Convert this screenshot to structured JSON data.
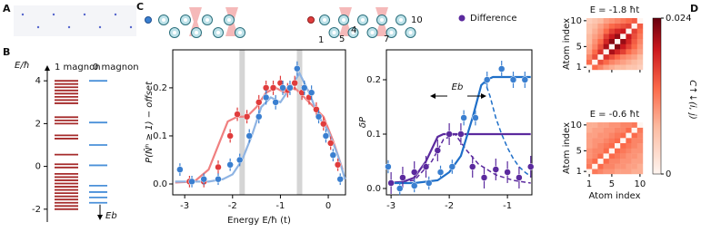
{
  "panel_labels": [
    "A",
    "B",
    "C",
    "D"
  ],
  "chain_labels": [
    "1",
    "4",
    "5",
    "7",
    "10"
  ],
  "colorbar": {
    "label": "C↑↓(i, j)",
    "lim": [
      0,
      0.024
    ],
    "ticks": [
      0,
      0.024
    ]
  },
  "chart_data": [
    {
      "type": "levels",
      "ylabel": "E/ħ",
      "ylim": [
        -2.6,
        4.6
      ],
      "yticks": [
        -2,
        0,
        2,
        4
      ],
      "annotation": "Eb",
      "series": [
        {
          "name": "1 magnon",
          "color": "#a52a2a",
          "values": [
            4.0,
            3.85,
            3.7,
            3.55,
            3.4,
            3.25,
            3.1,
            2.95,
            2.3,
            2.15,
            2.0,
            1.45,
            1.3,
            0.55,
            0.1,
            -0.05,
            -0.35,
            -0.5,
            -0.65,
            -0.8,
            -0.95,
            -1.1,
            -1.25,
            -1.4,
            -1.55,
            -1.7,
            -1.85,
            -2.0
          ]
        },
        {
          "name": "0 magnon",
          "color": "#4a90d9",
          "values": [
            4.0,
            2.05,
            1.0,
            0.05,
            -0.9,
            -1.2,
            -1.45,
            -1.7
          ]
        }
      ]
    },
    {
      "type": "scatter",
      "xlabel": "Energy E/ħ (t)",
      "ylabel": "P(N̂ʰ ≥ 1) − offset",
      "xlim": [
        -3.25,
        0.36
      ],
      "ylim": [
        -0.0226,
        0.279
      ],
      "xticks": [
        -3,
        -2,
        -1,
        0
      ],
      "yticks": [
        {
          "value": 0,
          "label": "0.0"
        },
        0.1,
        0.2
      ],
      "highlight_x": [
        -1.8,
        -0.6
      ],
      "series": [
        {
          "color": "#e03c3c",
          "x": [
            -2.9,
            -2.6,
            -2.3,
            -2.05,
            -1.9,
            -1.7,
            -1.45,
            -1.3,
            -1.15,
            -1.0,
            -0.85,
            -0.7,
            -0.55,
            -0.4,
            -0.25,
            -0.1,
            0.05,
            0.2
          ],
          "values": [
            0.005,
            0.005,
            0.035,
            0.1,
            0.145,
            0.14,
            0.17,
            0.2,
            0.2,
            0.21,
            0.195,
            0.21,
            0.19,
            0.18,
            0.155,
            0.125,
            0.085,
            0.04
          ],
          "errors": [
            0.012,
            0.012,
            0.014,
            0.014,
            0.014,
            0.014,
            0.015,
            0.015,
            0.015,
            0.015,
            0.015,
            0.015,
            0.015,
            0.015,
            0.015,
            0.014,
            0.014,
            0.013
          ]
        },
        {
          "color": "#3a7fd0",
          "x": [
            -3.1,
            -2.85,
            -2.6,
            -2.3,
            -2.05,
            -1.85,
            -1.65,
            -1.45,
            -1.3,
            -1.1,
            -0.95,
            -0.8,
            -0.65,
            -0.5,
            -0.35,
            -0.2,
            -0.05,
            0.1,
            0.25
          ],
          "values": [
            0.03,
            0.005,
            0.01,
            0.01,
            0.04,
            0.05,
            0.1,
            0.14,
            0.18,
            0.17,
            0.2,
            0.2,
            0.24,
            0.2,
            0.19,
            0.14,
            0.1,
            0.06,
            0.01
          ],
          "errors": [
            0.013,
            0.012,
            0.012,
            0.012,
            0.013,
            0.013,
            0.014,
            0.014,
            0.015,
            0.015,
            0.015,
            0.015,
            0.015,
            0.015,
            0.015,
            0.014,
            0.014,
            0.013,
            0.012
          ]
        }
      ],
      "fits": [
        {
          "color": "#f08080",
          "dashed": false,
          "x": [
            -3.2,
            -2.8,
            -2.5,
            -2.3,
            -2.1,
            -1.9,
            -1.7,
            -1.5,
            -1.3,
            -1.1,
            -0.9,
            -0.7,
            -0.5,
            -0.3,
            -0.1,
            0.1,
            0.3
          ],
          "values": [
            0.003,
            0.005,
            0.03,
            0.08,
            0.13,
            0.14,
            0.14,
            0.16,
            0.19,
            0.2,
            0.19,
            0.2,
            0.18,
            0.16,
            0.14,
            0.09,
            0.03
          ]
        },
        {
          "color": "#8fb4e3",
          "dashed": false,
          "x": [
            -3.2,
            -2.8,
            -2.5,
            -2.2,
            -2.0,
            -1.8,
            -1.6,
            -1.4,
            -1.2,
            -1.0,
            -0.8,
            -0.6,
            -0.4,
            -0.2,
            0,
            0.2,
            0.35
          ],
          "values": [
            0.005,
            0.005,
            0.005,
            0.01,
            0.02,
            0.05,
            0.1,
            0.16,
            0.18,
            0.17,
            0.2,
            0.23,
            0.19,
            0.14,
            0.11,
            0.06,
            0.01
          ]
        }
      ]
    },
    {
      "type": "scatter",
      "ylabel": "δP",
      "annotation": "Eb",
      "legend": "top",
      "xlim": [
        -3.08,
        -0.58
      ],
      "ylim": [
        -0.0117,
        0.255
      ],
      "xticks": [
        -3,
        -2,
        -1
      ],
      "yticks": [
        {
          "value": 0,
          "label": "0.0"
        },
        0.1,
        0.2
      ],
      "series": [
        {
          "name": "Difference",
          "color": "#5b2a9e",
          "x": [
            -3.0,
            -2.8,
            -2.6,
            -2.4,
            -2.2,
            -2.0,
            -1.8,
            -1.6,
            -1.4,
            -1.2,
            -1.0,
            -0.8,
            -0.6
          ],
          "values": [
            0.01,
            0.02,
            0.03,
            0.04,
            0.07,
            0.1,
            0.1,
            0.04,
            0.02,
            0.035,
            0.03,
            0.02,
            0.04
          ],
          "errors": [
            0.02,
            0.02,
            0.02,
            0.02,
            0.02,
            0.02,
            0.02,
            0.02,
            0.02,
            0.02,
            0.02,
            0.02,
            0.02
          ]
        },
        {
          "color": "#3a7fd0",
          "x": [
            -3.05,
            -2.85,
            -2.6,
            -2.35,
            -2.15,
            -1.95,
            -1.75,
            -1.55,
            -1.35,
            -1.1,
            -0.9,
            -0.7
          ],
          "values": [
            0.04,
            0.0,
            0.005,
            0.01,
            0.03,
            0.04,
            0.13,
            0.13,
            0.2,
            0.22,
            0.2,
            0.2
          ],
          "errors": [
            0.012,
            0.012,
            0.012,
            0.012,
            0.012,
            0.013,
            0.014,
            0.014,
            0.015,
            0.015,
            0.015,
            0.015
          ]
        }
      ],
      "fits": [
        {
          "color": "#5b2a9e",
          "dashed": false,
          "x": [
            -3.05,
            -2.8,
            -2.6,
            -2.4,
            -2.2,
            -2.1,
            -0.6
          ],
          "values": [
            0.01,
            0.012,
            0.02,
            0.05,
            0.095,
            0.1,
            0.1
          ]
        },
        {
          "color": "#5b2a9e",
          "dashed": true,
          "x": [
            -3.05,
            -2.6,
            -2.3,
            -2.1,
            -1.9,
            -1.7,
            -1.5,
            -1.2,
            -0.9,
            -0.6
          ],
          "values": [
            0.01,
            0.015,
            0.05,
            0.09,
            0.1,
            0.07,
            0.045,
            0.025,
            0.015,
            0.01
          ]
        },
        {
          "color": "#1f6fc8",
          "dashed": false,
          "x": [
            -3.05,
            -2.6,
            -2.2,
            -2.0,
            -1.8,
            -1.6,
            -1.45,
            -1.35,
            -1.25,
            -0.6
          ],
          "values": [
            0.01,
            0.01,
            0.015,
            0.03,
            0.06,
            0.13,
            0.19,
            0.2,
            0.205,
            0.205
          ]
        },
        {
          "color": "#1f6fc8",
          "dashed": true,
          "x": [
            -1.4,
            -1.3,
            -1.2,
            -1.1,
            -1.0,
            -0.9,
            -0.8,
            -0.7,
            -0.6
          ],
          "values": [
            0.2,
            0.17,
            0.13,
            0.1,
            0.075,
            0.055,
            0.04,
            0.03,
            0.022
          ]
        }
      ]
    },
    {
      "type": "heatmap",
      "title": "E = -1.8 ħt",
      "ylabel": "Atom index",
      "xticks": [
        1,
        5,
        10
      ],
      "yticks": [
        1,
        5,
        10
      ],
      "values": [
        [
          0,
          0.012,
          0.01,
          0.008,
          0.007,
          0.006,
          0.006,
          0.005,
          0.005,
          0.004
        ],
        [
          0.012,
          0,
          0.014,
          0.012,
          0.01,
          0.009,
          0.008,
          0.007,
          0.006,
          0.005
        ],
        [
          0.01,
          0.014,
          0,
          0.016,
          0.014,
          0.012,
          0.01,
          0.009,
          0.008,
          0.006
        ],
        [
          0.008,
          0.012,
          0.016,
          0,
          0.02,
          0.017,
          0.015,
          0.012,
          0.01,
          0.008
        ],
        [
          0.007,
          0.01,
          0.014,
          0.02,
          0,
          0.022,
          0.018,
          0.015,
          0.012,
          0.009
        ],
        [
          0.006,
          0.009,
          0.012,
          0.017,
          0.022,
          0,
          0.021,
          0.017,
          0.013,
          0.01
        ],
        [
          0.006,
          0.008,
          0.01,
          0.015,
          0.018,
          0.021,
          0,
          0.018,
          0.014,
          0.011
        ],
        [
          0.005,
          0.007,
          0.009,
          0.012,
          0.015,
          0.017,
          0.018,
          0,
          0.015,
          0.012
        ],
        [
          0.005,
          0.006,
          0.008,
          0.01,
          0.012,
          0.013,
          0.014,
          0.015,
          0,
          0.013
        ],
        [
          0.004,
          0.005,
          0.006,
          0.008,
          0.009,
          0.01,
          0.011,
          0.012,
          0.013,
          0
        ]
      ]
    },
    {
      "type": "heatmap",
      "title": "E = -0.6 ħt",
      "ylabel": "Atom index",
      "xlabel": "Atom index",
      "xticks": [
        1,
        5,
        10
      ],
      "yticks": [
        1,
        5,
        10
      ],
      "values": [
        [
          0,
          0.011,
          0.01,
          0.009,
          0.009,
          0.008,
          0.008,
          0.008,
          0.007,
          0.007
        ],
        [
          0.011,
          0,
          0.012,
          0.01,
          0.01,
          0.009,
          0.009,
          0.008,
          0.008,
          0.007
        ],
        [
          0.01,
          0.012,
          0,
          0.012,
          0.01,
          0.01,
          0.009,
          0.009,
          0.008,
          0.008
        ],
        [
          0.009,
          0.01,
          0.012,
          0,
          0.012,
          0.011,
          0.01,
          0.009,
          0.009,
          0.008
        ],
        [
          0.009,
          0.01,
          0.01,
          0.012,
          0,
          0.012,
          0.011,
          0.01,
          0.009,
          0.009
        ],
        [
          0.008,
          0.009,
          0.01,
          0.011,
          0.012,
          0,
          0.012,
          0.011,
          0.01,
          0.009
        ],
        [
          0.008,
          0.009,
          0.009,
          0.01,
          0.011,
          0.012,
          0,
          0.012,
          0.01,
          0.01
        ],
        [
          0.008,
          0.008,
          0.009,
          0.009,
          0.01,
          0.011,
          0.012,
          0,
          0.012,
          0.01
        ],
        [
          0.007,
          0.008,
          0.008,
          0.009,
          0.009,
          0.01,
          0.01,
          0.012,
          0,
          0.011
        ],
        [
          0.007,
          0.007,
          0.008,
          0.008,
          0.009,
          0.009,
          0.01,
          0.01,
          0.011,
          0
        ]
      ]
    }
  ]
}
